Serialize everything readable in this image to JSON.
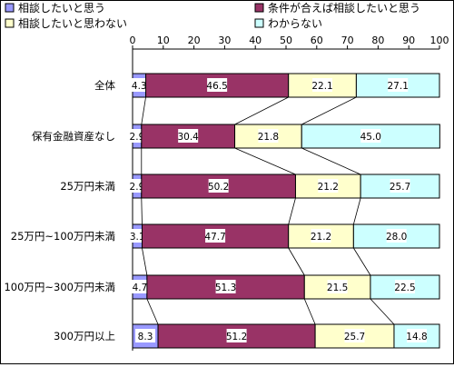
{
  "chart_data": {
    "type": "bar",
    "stacked": true,
    "orientation": "horizontal",
    "percent_stacked": true,
    "categories": [
      "全体",
      "保有金融資産なし",
      "25万円未満",
      "25万円~100万円未満",
      "100万円~300万円未満",
      "300万円以上"
    ],
    "series": [
      {
        "name": "相談したいと思う",
        "color": "#9999ff",
        "values": [
          4.3,
          2.9,
          2.9,
          3.1,
          4.7,
          8.3
        ]
      },
      {
        "name": "条件が合えば相談したいと思う",
        "color": "#993366",
        "values": [
          46.5,
          30.4,
          50.2,
          47.7,
          51.3,
          51.2
        ]
      },
      {
        "name": "相談したいと思わない",
        "color": "#ffffcc",
        "values": [
          22.1,
          21.8,
          21.2,
          21.2,
          21.5,
          25.7
        ]
      },
      {
        "name": "わからない",
        "color": "#ccffff",
        "values": [
          27.1,
          45.0,
          25.7,
          28.0,
          22.5,
          14.8
        ]
      }
    ],
    "xlim": [
      0,
      100
    ],
    "xticks": [
      0,
      10,
      20,
      30,
      40,
      50,
      60,
      70,
      80,
      90,
      100
    ],
    "legend": "top",
    "grid": false,
    "series_lines": true
  }
}
